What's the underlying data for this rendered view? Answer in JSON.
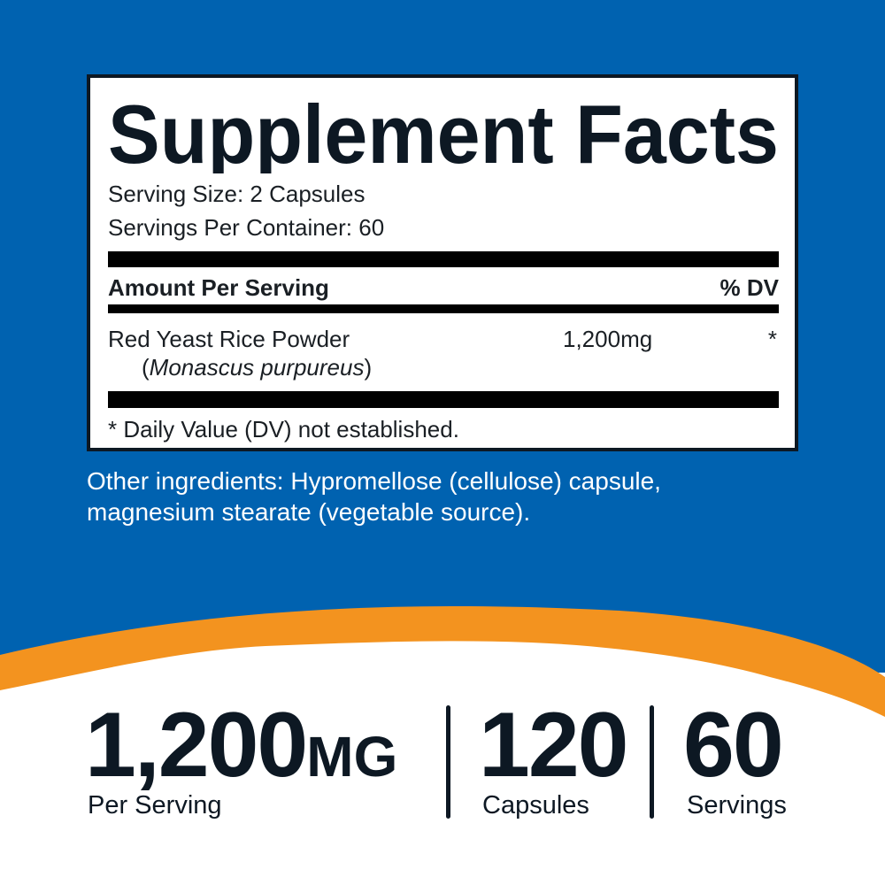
{
  "colors": {
    "background_blue": "#0062b0",
    "accent_orange": "#f3931f",
    "text_dark": "#0d1823"
  },
  "label": {
    "title": "Supplement Facts",
    "serving_size": "Serving Size: 2 Capsules",
    "servings_per_container": "Servings Per Container: 60",
    "amount_header": "Amount Per Serving",
    "dv_header": "% DV",
    "ingredient": {
      "name": "Red Yeast Rice Powder",
      "species_open": "(",
      "species": "Monascus purpureus",
      "species_close": ")",
      "amount": "1,200mg",
      "dv": "*"
    },
    "footnote": "* Daily Value (DV) not established."
  },
  "other_ingredients": {
    "line1": "Other ingredients: Hypromellose (cellulose) capsule,",
    "line2": "magnesium stearate (vegetable source)."
  },
  "highlights": [
    {
      "value": "1,200",
      "unit": "MG",
      "caption": "Per Serving"
    },
    {
      "value": "120",
      "caption": "Capsules"
    },
    {
      "value": "60",
      "caption": "Servings"
    }
  ]
}
